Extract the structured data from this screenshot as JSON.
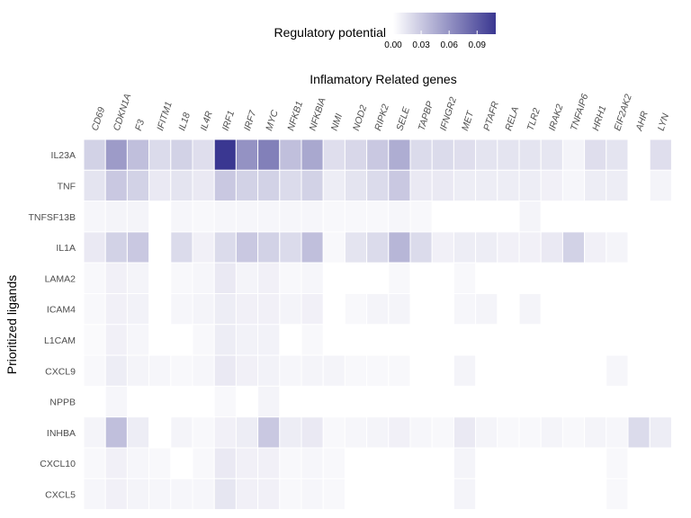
{
  "chart_data": {
    "type": "heatmap",
    "title": "",
    "xlabel": "Inflamatory Related genes",
    "ylabel": "Prioritized ligands",
    "x_axis_position": "top",
    "x": [
      "CD69",
      "CDKN1A",
      "F3",
      "IFITM1",
      "IL18",
      "IL4R",
      "IRF1",
      "IRF7",
      "MYC",
      "NFKB1",
      "NFKBIA",
      "NMI",
      "NOD2",
      "RIPK2",
      "SELE",
      "TAPBP",
      "IFNGR2",
      "MET",
      "PTAFR",
      "RELA",
      "TLR2",
      "IRAK2",
      "TNFAIP6",
      "HRH1",
      "EIF2AK2",
      "AHR",
      "LYN"
    ],
    "y": [
      "IL23A",
      "TNF",
      "TNFSF13B",
      "IL1A",
      "LAMA2",
      "ICAM4",
      "L1CAM",
      "CXCL9",
      "NPPB",
      "INHBA",
      "CXCL10",
      "CXCL5"
    ],
    "values": [
      [
        0.025,
        0.055,
        0.035,
        0.02,
        0.025,
        0.018,
        0.11,
        0.06,
        0.07,
        0.035,
        0.048,
        0.018,
        0.022,
        0.03,
        0.045,
        0.02,
        0.02,
        0.018,
        0.015,
        0.015,
        0.015,
        0.014,
        0.006,
        0.018,
        0.015,
        null,
        0.018
      ],
      [
        0.015,
        0.03,
        0.025,
        0.012,
        0.015,
        0.012,
        0.03,
        0.025,
        0.025,
        0.02,
        0.025,
        0.01,
        0.015,
        0.02,
        0.03,
        0.012,
        0.012,
        0.01,
        0.01,
        0.01,
        0.01,
        0.008,
        0.005,
        0.01,
        0.01,
        null,
        0.006
      ],
      [
        0.005,
        0.006,
        0.006,
        null,
        0.005,
        0.004,
        0.005,
        0.005,
        0.005,
        0.005,
        0.005,
        0.004,
        0.004,
        0.004,
        0.005,
        0.004,
        null,
        null,
        null,
        null,
        0.006,
        null,
        null,
        null,
        null,
        null,
        null
      ],
      [
        0.012,
        0.025,
        0.03,
        null,
        0.02,
        0.008,
        0.02,
        0.03,
        0.025,
        0.02,
        0.035,
        0.004,
        0.015,
        0.02,
        0.04,
        0.02,
        0.008,
        0.01,
        0.01,
        0.008,
        0.008,
        0.012,
        0.025,
        0.008,
        0.006,
        null,
        null
      ],
      [
        0.004,
        0.008,
        0.006,
        null,
        0.004,
        0.005,
        0.012,
        0.006,
        0.008,
        0.004,
        0.005,
        null,
        null,
        null,
        0.004,
        null,
        null,
        0.004,
        null,
        null,
        null,
        null,
        null,
        null,
        null,
        null,
        null
      ],
      [
        0.004,
        0.008,
        0.007,
        null,
        0.005,
        0.006,
        0.01,
        0.008,
        0.008,
        0.006,
        0.008,
        null,
        0.004,
        0.006,
        0.006,
        null,
        null,
        0.005,
        0.006,
        null,
        0.006,
        null,
        null,
        null,
        null,
        null,
        null
      ],
      [
        0.003,
        0.008,
        0.005,
        null,
        null,
        0.004,
        0.01,
        0.007,
        0.007,
        null,
        0.004,
        null,
        null,
        null,
        null,
        null,
        null,
        null,
        null,
        null,
        null,
        null,
        null,
        null,
        null,
        null,
        null
      ],
      [
        0.004,
        0.01,
        0.006,
        0.005,
        0.004,
        0.005,
        0.012,
        0.008,
        0.007,
        0.005,
        0.006,
        0.006,
        0.004,
        0.004,
        0.004,
        null,
        null,
        0.006,
        null,
        null,
        null,
        null,
        null,
        null,
        0.005,
        null,
        null
      ],
      [
        null,
        0.005,
        null,
        null,
        null,
        null,
        0.004,
        null,
        0.006,
        null,
        null,
        null,
        null,
        null,
        null,
        null,
        null,
        null,
        null,
        null,
        null,
        null,
        null,
        null,
        null,
        null,
        null
      ],
      [
        0.006,
        0.035,
        0.01,
        null,
        0.006,
        0.004,
        0.008,
        0.01,
        0.03,
        0.01,
        0.012,
        0.004,
        0.005,
        0.006,
        0.008,
        0.005,
        0.004,
        0.012,
        0.006,
        0.004,
        0.004,
        0.006,
        0.004,
        0.006,
        0.005,
        0.02,
        0.01
      ],
      [
        0.004,
        0.008,
        0.005,
        0.004,
        null,
        0.004,
        0.012,
        0.008,
        0.008,
        0.004,
        0.005,
        0.004,
        null,
        null,
        null,
        null,
        null,
        0.006,
        null,
        null,
        null,
        null,
        null,
        null,
        0.004,
        null,
        null
      ],
      [
        0.005,
        0.008,
        0.006,
        0.005,
        0.005,
        0.005,
        0.014,
        0.008,
        0.008,
        0.004,
        0.005,
        0.004,
        null,
        null,
        null,
        null,
        null,
        0.006,
        null,
        null,
        null,
        null,
        null,
        null,
        0.004,
        null,
        null
      ]
    ],
    "legend": {
      "title": "Regulatory potential",
      "position": "top",
      "range": [
        0,
        0.11
      ],
      "ticks": [
        "0.00",
        "0.03",
        "0.06",
        "0.09"
      ],
      "tick_values": [
        0,
        0.03,
        0.06,
        0.09
      ],
      "color_low": "#ffffff",
      "color_high": "#3a3791"
    },
    "grid": false
  }
}
